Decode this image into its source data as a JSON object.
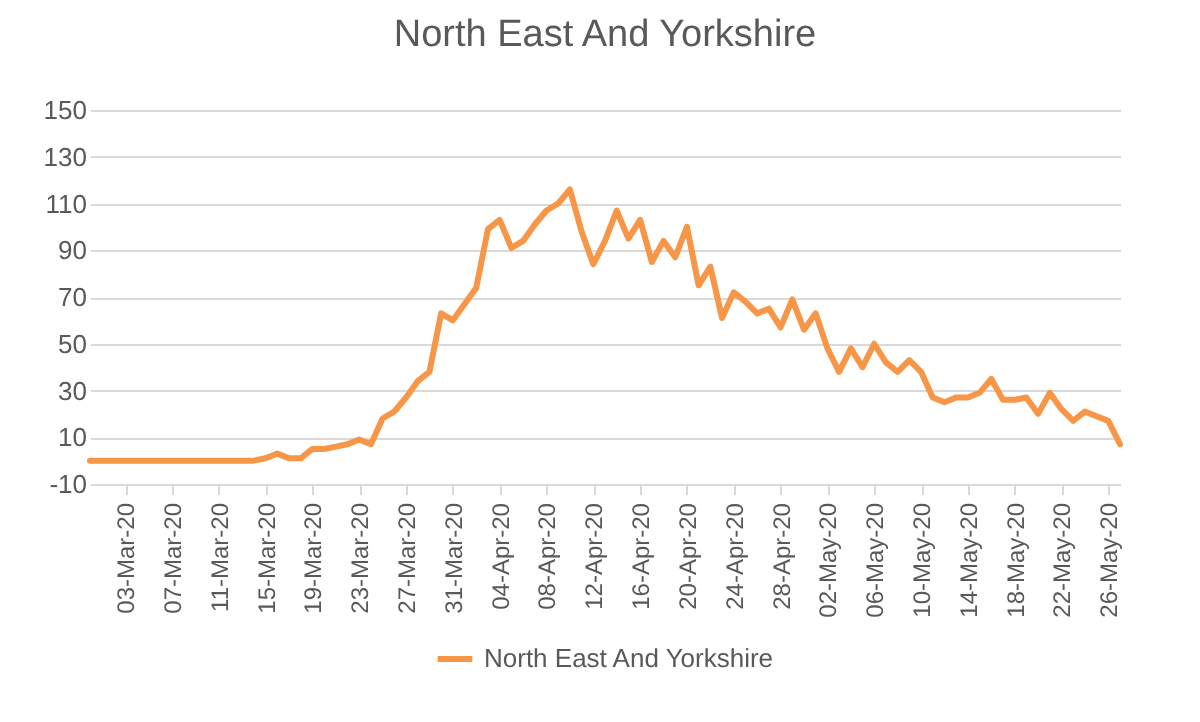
{
  "chart_data": {
    "type": "line",
    "title": "North East And Yorkshire",
    "x": [
      "--02-29",
      "--03-01",
      "--03-02",
      "--03-03",
      "--03-04",
      "--03-05",
      "--03-06",
      "--03-07",
      "--03-08",
      "--03-09",
      "--03-10",
      "--03-11",
      "--03-12",
      "--03-13",
      "--03-14",
      "--03-15",
      "--03-16",
      "--03-17",
      "--03-18",
      "--03-19",
      "--03-20",
      "--03-21",
      "--03-22",
      "--03-23",
      "--03-24",
      "--03-25",
      "--03-26",
      "--03-27",
      "--03-28",
      "--03-29",
      "--03-30",
      "--03-31",
      "--04-01",
      "--04-02",
      "--04-03",
      "--04-04",
      "--04-05",
      "--04-06",
      "--04-07",
      "--04-08",
      "--04-09",
      "--04-10",
      "--04-11",
      "--04-12",
      "--04-13",
      "--04-14",
      "--04-15",
      "--04-16",
      "--04-17",
      "--04-18",
      "--04-19",
      "--04-20",
      "--04-21",
      "--04-22",
      "--04-23",
      "--04-24",
      "--04-25",
      "--04-26",
      "--04-27",
      "--04-28",
      "--04-29",
      "--04-30",
      "--05-01",
      "--05-02",
      "--05-03",
      "--05-04",
      "--05-05",
      "--05-06",
      "--05-07",
      "--05-08",
      "--05-09",
      "--05-10",
      "--05-11",
      "--05-12",
      "--05-13",
      "--05-14",
      "--05-15",
      "--05-16",
      "--05-17",
      "--05-18",
      "--05-19",
      "--05-20",
      "--05-21",
      "--05-22",
      "--05-23",
      "--05-24",
      "--05-25",
      "--05-26",
      "--05-27"
    ],
    "series": [
      {
        "name": "North East And Yorkshire",
        "color": "#f79646",
        "values": [
          0,
          0,
          0,
          0,
          0,
          0,
          0,
          0,
          0,
          0,
          0,
          0,
          0,
          0,
          0,
          1,
          3,
          1,
          1,
          5,
          5,
          6,
          7,
          9,
          7,
          18,
          21,
          27,
          34,
          38,
          63,
          60,
          67,
          74,
          99,
          103,
          91,
          94,
          101,
          107,
          110,
          116,
          98,
          84,
          94,
          107,
          95,
          103,
          85,
          94,
          87,
          100,
          75,
          83,
          61,
          72,
          68,
          63,
          65,
          57,
          69,
          56,
          63,
          48,
          38,
          48,
          40,
          50,
          42,
          38,
          43,
          38,
          27,
          25,
          27,
          27,
          29,
          35,
          26,
          26,
          27,
          20,
          29,
          22,
          17,
          21,
          19,
          17,
          7
        ]
      }
    ],
    "xlim": [
      "--02-29",
      "--05-27"
    ],
    "xticks": [
      {
        "value": "--03-03",
        "label": "03-Mar-20"
      },
      {
        "value": "--03-07",
        "label": "07-Mar-20"
      },
      {
        "value": "--03-11",
        "label": "11-Mar-20"
      },
      {
        "value": "--03-15",
        "label": "15-Mar-20"
      },
      {
        "value": "--03-19",
        "label": "19-Mar-20"
      },
      {
        "value": "--03-23",
        "label": "23-Mar-20"
      },
      {
        "value": "--03-27",
        "label": "27-Mar-20"
      },
      {
        "value": "--03-31",
        "label": "31-Mar-20"
      },
      {
        "value": "--04-04",
        "label": "04-Apr-20"
      },
      {
        "value": "--04-08",
        "label": "08-Apr-20"
      },
      {
        "value": "--04-12",
        "label": "12-Apr-20"
      },
      {
        "value": "--04-16",
        "label": "16-Apr-20"
      },
      {
        "value": "--04-20",
        "label": "20-Apr-20"
      },
      {
        "value": "--04-24",
        "label": "24-Apr-20"
      },
      {
        "value": "--04-28",
        "label": "28-Apr-20"
      },
      {
        "value": "--05-02",
        "label": "02-May-20"
      },
      {
        "value": "--05-06",
        "label": "06-May-20"
      },
      {
        "value": "--05-10",
        "label": "10-May-20"
      },
      {
        "value": "--05-14",
        "label": "14-May-20"
      },
      {
        "value": "--05-18",
        "label": "18-May-20"
      },
      {
        "value": "--05-22",
        "label": "22-May-20"
      },
      {
        "value": "--05-26",
        "label": "26-May-20"
      }
    ],
    "ylim": [
      -10,
      150
    ],
    "yticks": [
      -10,
      10,
      30,
      50,
      70,
      90,
      110,
      130,
      150
    ],
    "grid": "y",
    "legend": "bottom",
    "line_style": "solid",
    "marker": "none"
  }
}
